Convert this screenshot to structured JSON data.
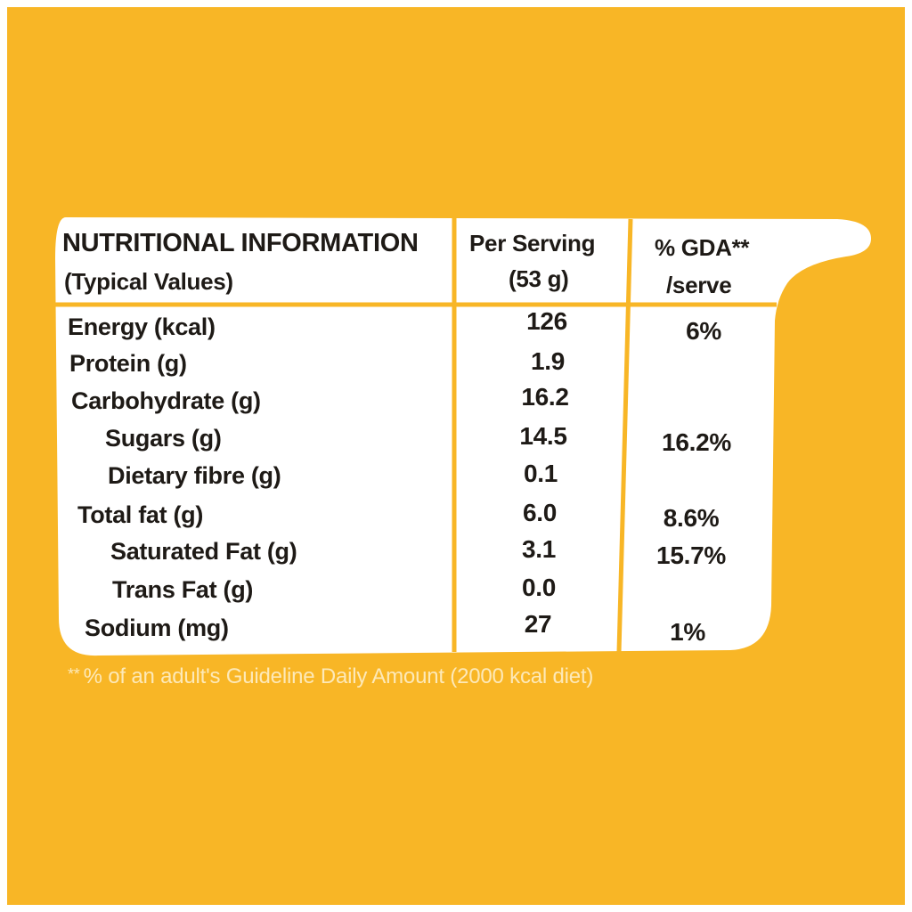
{
  "colors": {
    "background": "#F8B626",
    "table_background": "#FFFFFF",
    "rule": "#F8B626",
    "text": "#1E1A16",
    "footnote_text": "#FDE9B8"
  },
  "table": {
    "header": {
      "title": "NUTRITIONAL INFORMATION",
      "subtitle": "(Typical Values)",
      "per_serving_line1": "Per Serving",
      "per_serving_line2": "(53 g)",
      "gda_line1": "% GDA**",
      "gda_line2": "/serve"
    },
    "rows": [
      {
        "label": "Energy (kcal)",
        "per_serving": "126",
        "gda": "6%"
      },
      {
        "label": "Protein (g)",
        "per_serving": "1.9",
        "gda": ""
      },
      {
        "label": "Carbohydrate (g)",
        "per_serving": "16.2",
        "gda": ""
      },
      {
        "label": "Sugars (g)",
        "per_serving": "14.5",
        "gda": "16.2%"
      },
      {
        "label": "Dietary fibre (g)",
        "per_serving": "0.1",
        "gda": ""
      },
      {
        "label": "Total fat (g)",
        "per_serving": "6.0",
        "gda": "8.6%"
      },
      {
        "label": "Saturated Fat (g)",
        "per_serving": "3.1",
        "gda": "15.7%"
      },
      {
        "label": "Trans Fat (g)",
        "per_serving": "0.0",
        "gda": ""
      },
      {
        "label": "Sodium (mg)",
        "per_serving": "27",
        "gda": "1%"
      }
    ]
  },
  "footnote": {
    "marker": "**",
    "text": "% of an adult's Guideline Daily Amount (2000 kcal diet)"
  }
}
